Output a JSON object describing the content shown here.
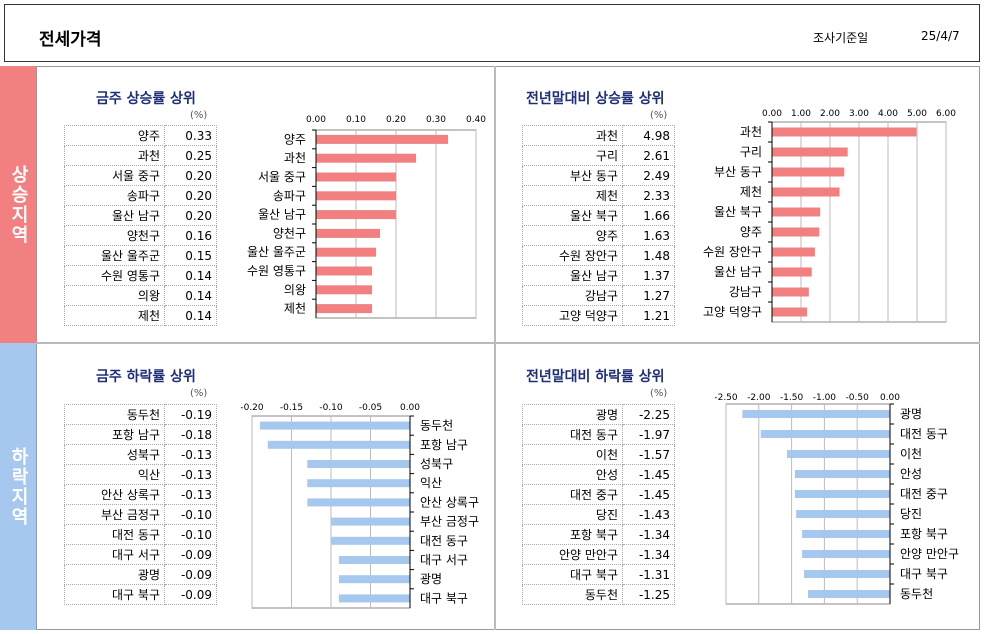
{
  "header": {
    "title": "전세가격",
    "date_label": "조사기준일",
    "date_value": "25/4/7"
  },
  "bands": {
    "up": "상승지역",
    "down": "하락지역"
  },
  "unit": "(%)",
  "chart_data": [
    {
      "type": "bar",
      "title": "금주 상승률 상위",
      "categories": [
        "양주",
        "과천",
        "서울 중구",
        "송파구",
        "울산 남구",
        "양천구",
        "울산 울주군",
        "수원 영통구",
        "의왕",
        "제천"
      ],
      "values": [
        0.33,
        0.25,
        0.2,
        0.2,
        0.2,
        0.16,
        0.15,
        0.14,
        0.14,
        0.14
      ],
      "value_labels": [
        "0.33",
        "0.25",
        "0.20",
        "0.20",
        "0.20",
        "0.16",
        "0.15",
        "0.14",
        "0.14",
        "0.14"
      ],
      "xlim": [
        0,
        0.4
      ],
      "ticks": [
        "0.00",
        "0.10",
        "0.20",
        "0.30",
        "0.40"
      ],
      "color": "#f28080"
    },
    {
      "type": "bar",
      "title": "전년말대비 상승률 상위",
      "categories": [
        "과천",
        "구리",
        "부산 동구",
        "제천",
        "울산 북구",
        "양주",
        "수원 장안구",
        "울산 남구",
        "강남구",
        "고양 덕양구"
      ],
      "values": [
        4.98,
        2.61,
        2.49,
        2.33,
        1.66,
        1.63,
        1.48,
        1.37,
        1.27,
        1.21
      ],
      "value_labels": [
        "4.98",
        "2.61",
        "2.49",
        "2.33",
        "1.66",
        "1.63",
        "1.48",
        "1.37",
        "1.27",
        "1.21"
      ],
      "xlim": [
        0,
        6
      ],
      "ticks": [
        "0.00",
        "1.00",
        "2.00",
        "3.00",
        "4.00",
        "5.00",
        "6.00"
      ],
      "color": "#f28080"
    },
    {
      "type": "bar",
      "title": "금주 하락률 상위",
      "categories": [
        "동두천",
        "포항 남구",
        "성북구",
        "익산",
        "안산 상록구",
        "부산 금정구",
        "대전 동구",
        "대구 서구",
        "광명",
        "대구 북구"
      ],
      "values": [
        -0.19,
        -0.18,
        -0.13,
        -0.13,
        -0.13,
        -0.1,
        -0.1,
        -0.09,
        -0.09,
        -0.09
      ],
      "value_labels": [
        "-0.19",
        "-0.18",
        "-0.13",
        "-0.13",
        "-0.13",
        "-0.10",
        "-0.10",
        "-0.09",
        "-0.09",
        "-0.09"
      ],
      "xlim": [
        -0.2,
        0
      ],
      "ticks": [
        "-0.20",
        "-0.15",
        "-0.10",
        "-0.05",
        "0.00"
      ],
      "color": "#a7c8ee"
    },
    {
      "type": "bar",
      "title": "전년말대비 하락률 상위",
      "categories": [
        "광명",
        "대전 동구",
        "이천",
        "안성",
        "대전 중구",
        "당진",
        "포항 북구",
        "안양 만안구",
        "대구 북구",
        "동두천"
      ],
      "values": [
        -2.25,
        -1.97,
        -1.57,
        -1.45,
        -1.45,
        -1.43,
        -1.34,
        -1.34,
        -1.31,
        -1.25
      ],
      "value_labels": [
        "-2.25",
        "-1.97",
        "-1.57",
        "-1.45",
        "-1.45",
        "-1.43",
        "-1.34",
        "-1.34",
        "-1.31",
        "-1.25"
      ],
      "xlim": [
        -2.5,
        0
      ],
      "ticks": [
        "-2.50",
        "-2.00",
        "-1.50",
        "-1.00",
        "-0.50",
        "0.00"
      ],
      "color": "#a7c8ee"
    }
  ]
}
